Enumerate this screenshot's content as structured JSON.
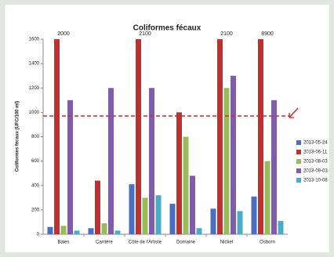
{
  "chart_data": {
    "type": "bar",
    "title": "Coliformes fécaux",
    "y_label": "Coliformes fécaux (UFC/100 ml)",
    "categories": [
      "Baies",
      "Carrière",
      "Côte de l'Artiste",
      "Domaine",
      "Nickel",
      "Osborn"
    ],
    "series": [
      {
        "name": "2013-05-24",
        "color": "#4a6fc0",
        "values": [
          60,
          50,
          410,
          250,
          210,
          310
        ]
      },
      {
        "name": "2013-06-11",
        "color": "#c0302e",
        "values": [
          2000,
          440,
          2100,
          1000,
          2100,
          8900
        ],
        "value_labels": [
          "2000",
          null,
          "2100",
          null,
          "2100",
          "8900"
        ]
      },
      {
        "name": "2013-08-03",
        "color": "#9bbb59",
        "values": [
          70,
          90,
          300,
          800,
          1200,
          600
        ]
      },
      {
        "name": "2013-09-03",
        "color": "#7e5ea8",
        "values": [
          1100,
          1200,
          1200,
          480,
          1300,
          1100
        ]
      },
      {
        "name": "2013-10-08",
        "color": "#4bacc6",
        "values": [
          30,
          30,
          320,
          50,
          190,
          110
        ]
      }
    ],
    "threshold": 970,
    "ylim": [
      0,
      1600
    ],
    "yticks": [
      0,
      200,
      400,
      600,
      800,
      1000,
      1200,
      1400,
      1600
    ],
    "grid": false
  }
}
